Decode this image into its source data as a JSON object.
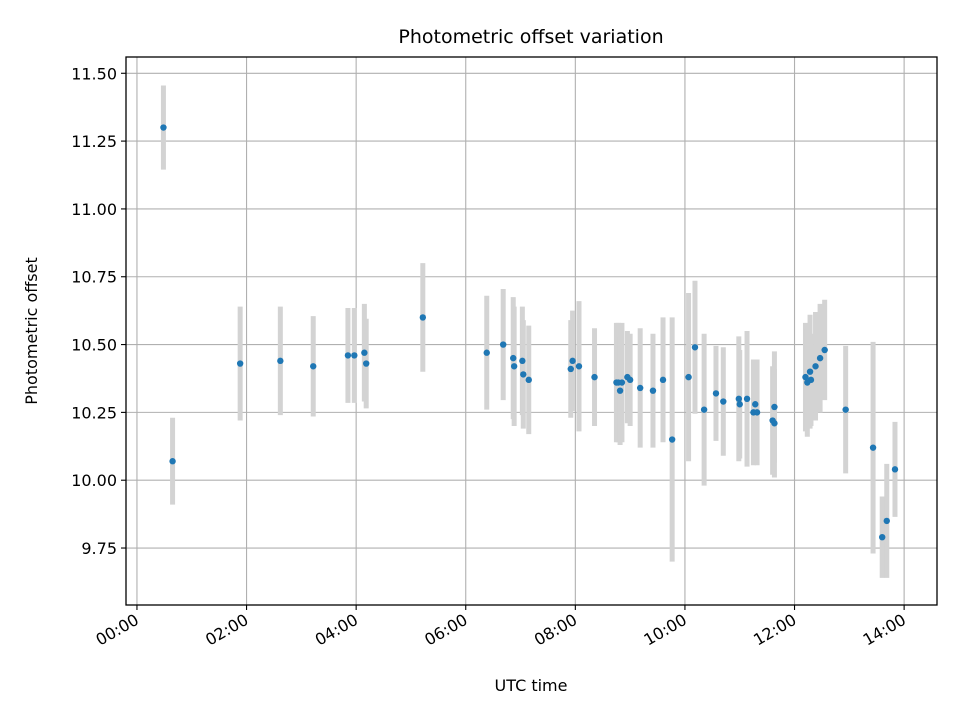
{
  "chart_data": {
    "type": "scatter",
    "title": "Photometric offset variation",
    "xlabel": "UTC time",
    "ylabel": "Photometric offset",
    "xlim": [
      "-00:12",
      "14:36"
    ],
    "ylim": [
      9.54,
      11.56
    ],
    "xticks": [
      "00:00",
      "02:00",
      "04:00",
      "06:00",
      "08:00",
      "10:00",
      "12:00",
      "14:00"
    ],
    "yticks": [
      9.75,
      10.0,
      10.25,
      10.5,
      10.75,
      11.0,
      11.25,
      11.5
    ],
    "ytick_labels": [
      "9.75",
      "10.00",
      "10.25",
      "10.50",
      "10.75",
      "11.00",
      "11.25",
      "11.50"
    ],
    "grid": true,
    "colors": {
      "point": "#1f77b4",
      "errorbar": "#d3d3d3",
      "grid": "#b0b0b0",
      "axes": "#000000"
    },
    "series": [
      {
        "x": [
          "00:29",
          "00:39",
          "01:53",
          "02:37",
          "03:13",
          "03:51",
          "03:58",
          "04:09",
          "04:11",
          "05:13",
          "06:23",
          "06:41",
          "06:52",
          "06:53",
          "07:02",
          "07:03",
          "07:09",
          "07:55",
          "07:57",
          "08:04",
          "08:21",
          "08:45",
          "08:47",
          "08:49",
          "08:51",
          "08:57",
          "09:00",
          "09:11",
          "09:25",
          "09:36",
          "09:46",
          "10:04",
          "10:11",
          "10:21",
          "10:34",
          "10:42",
          "10:59",
          "11:00",
          "11:08",
          "11:15",
          "11:17",
          "11:19",
          "11:36",
          "11:38",
          "11:38",
          "12:12",
          "12:14",
          "12:17",
          "12:18",
          "12:23",
          "12:28",
          "12:33",
          "12:56",
          "13:26",
          "13:36",
          "13:41",
          "13:50"
        ],
        "y": [
          11.3,
          10.07,
          10.43,
          10.44,
          10.42,
          10.46,
          10.46,
          10.47,
          10.43,
          10.6,
          10.47,
          10.5,
          10.45,
          10.42,
          10.44,
          10.39,
          10.37,
          10.41,
          10.44,
          10.42,
          10.38,
          10.36,
          10.36,
          10.33,
          10.36,
          10.38,
          10.37,
          10.34,
          10.33,
          10.37,
          10.15,
          10.38,
          10.49,
          10.26,
          10.32,
          10.29,
          10.3,
          10.28,
          10.3,
          10.25,
          10.28,
          10.25,
          10.22,
          10.21,
          10.27,
          10.38,
          10.36,
          10.4,
          10.37,
          10.42,
          10.45,
          10.48,
          10.26,
          10.12,
          9.79,
          9.85,
          10.04
        ],
        "yerr": [
          0.155,
          0.16,
          0.21,
          0.2,
          0.185,
          0.175,
          0.175,
          0.18,
          0.165,
          0.2,
          0.21,
          0.205,
          0.225,
          0.22,
          0.2,
          0.2,
          0.2,
          0.18,
          0.185,
          0.24,
          0.18,
          0.22,
          0.22,
          0.2,
          0.22,
          0.17,
          0.17,
          0.22,
          0.21,
          0.23,
          0.45,
          0.31,
          0.245,
          0.28,
          0.175,
          0.2,
          0.23,
          0.2,
          0.25,
          0.195,
          0.15,
          0.195,
          0.2,
          0.2,
          0.205,
          0.2,
          0.2,
          0.21,
          0.17,
          0.2,
          0.2,
          0.185,
          0.235,
          0.39,
          0.15,
          0.21,
          0.175
        ]
      }
    ]
  }
}
